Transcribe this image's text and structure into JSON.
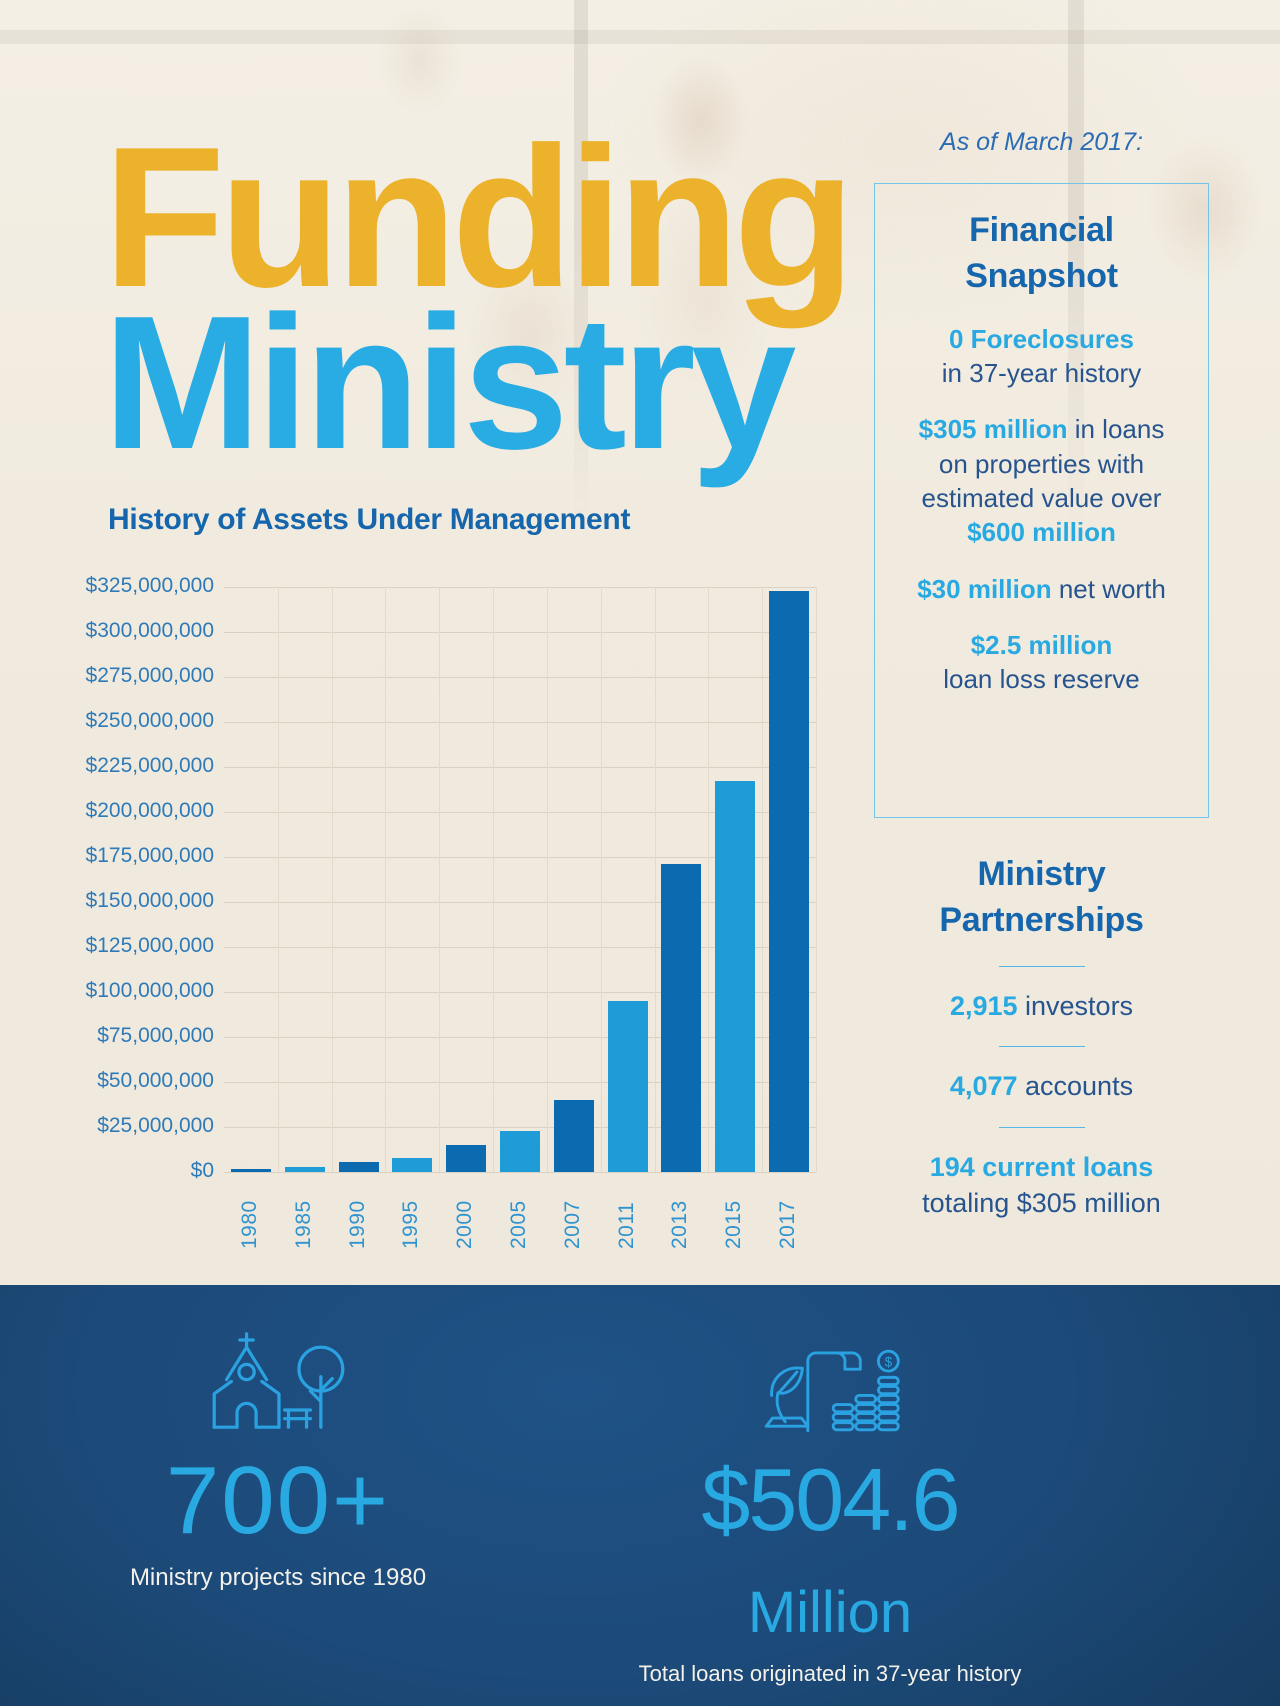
{
  "title": {
    "line1": "Funding",
    "line2": "Ministry"
  },
  "as_of_label": "As of March 2017:",
  "chart_heading": "History of Assets Under Management",
  "chart_data": {
    "type": "bar",
    "title": "History of Assets Under Management",
    "unit": "USD millions",
    "categories": [
      "1980",
      "1985",
      "1990",
      "1995",
      "2000",
      "2005",
      "2007",
      "2011",
      "2013",
      "2015",
      "2017"
    ],
    "values_millions": [
      1.5,
      3,
      5.5,
      8,
      15,
      23,
      40,
      95,
      171,
      217,
      323
    ],
    "bar_shades": [
      "dark",
      "light",
      "dark",
      "light",
      "dark",
      "light",
      "dark",
      "light",
      "dark",
      "light",
      "dark"
    ],
    "bar_colors": {
      "dark": "#0c6bb0",
      "light": "#1e9cd8"
    },
    "y_ticks": [
      "$325,000,000",
      "$300,000,000",
      "$275,000,000",
      "$250,000,000",
      "$225,000,000",
      "$200,000,000",
      "$175,000,000",
      "$150,000,000",
      "$125,000,000",
      "$100,000,000",
      "$75,000,000",
      "$50,000,000",
      "$25,000,000",
      "$0"
    ],
    "ylim_millions": [
      0,
      325
    ],
    "grid": true,
    "legend": false,
    "x_label_style": "rotated-vertical"
  },
  "snapshot": {
    "heading_line1": "Financial",
    "heading_line2": "Snapshot",
    "groups": [
      {
        "lines": [
          [
            {
              "text": "0 Foreclosures",
              "accent": true
            }
          ],
          [
            {
              "text": "in 37-year history",
              "accent": false
            }
          ]
        ]
      },
      {
        "lines": [
          [
            {
              "text": "$305 million",
              "accent": true
            },
            {
              "text": " in loans",
              "accent": false
            }
          ],
          [
            {
              "text": "on properties with",
              "accent": false
            }
          ],
          [
            {
              "text": "estimated value over",
              "accent": false
            }
          ],
          [
            {
              "text": "$600 million",
              "accent": true
            }
          ]
        ]
      },
      {
        "lines": [
          [
            {
              "text": "$30 million",
              "accent": true
            },
            {
              "text": " net worth",
              "accent": false
            }
          ]
        ]
      },
      {
        "lines": [
          [
            {
              "text": "$2.5 million",
              "accent": true
            }
          ],
          [
            {
              "text": "loan loss reserve",
              "accent": false
            }
          ]
        ]
      }
    ]
  },
  "partnerships": {
    "heading_line1": "Ministry",
    "heading_line2": "Partnerships",
    "items": [
      {
        "lines": [
          [
            {
              "text": "2,915",
              "accent": true
            },
            {
              "text": " investors",
              "accent": false
            }
          ]
        ]
      },
      {
        "lines": [
          [
            {
              "text": "4,077",
              "accent": true
            },
            {
              "text": " accounts",
              "accent": false
            }
          ]
        ]
      },
      {
        "lines": [
          [
            {
              "text": "194 current loans",
              "accent": true
            }
          ],
          [
            {
              "text": "totaling $305 million",
              "accent": false
            }
          ]
        ]
      }
    ]
  },
  "band": {
    "left": {
      "value": "700+",
      "caption": "Ministry projects since 1980",
      "icon": "church-and-tree-icon"
    },
    "right": {
      "value": "$504.6",
      "unit": "Million",
      "caption": "Total loans originated in 37-year history",
      "icon": "loan-scroll-and-coins-icon"
    }
  },
  "colors": {
    "accent_cyan": "#29a9e1",
    "heading_blue": "#1566ad",
    "body_blue": "#27548e",
    "gold": "#ecb22c",
    "title_cyan": "#29ace3",
    "band_background": "#1d4d7d",
    "bar_dark": "#0c6bb0",
    "bar_light": "#1e9cd8"
  }
}
